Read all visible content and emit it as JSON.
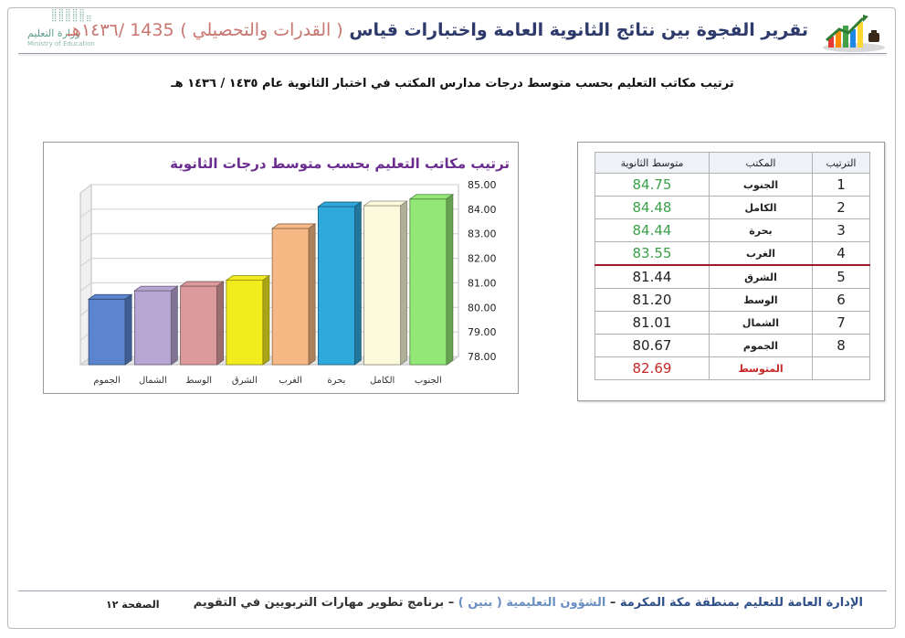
{
  "header": {
    "title_main": "تقرير الفجوة بين نتائج الثانوية العامة واختبارات قياس",
    "title_bracket": "( القدرات والتحصيلي )",
    "title_year": "1435 /١٤٣٦هـ",
    "ministry_ar": "وزارة التعليم",
    "ministry_en": "Ministry of Education"
  },
  "subtitle": "ترتيب مكاتب التعليم بحسب متوسط درجات مدارس المكتب في اختبار الثانوية عام ١٤٣٥ / ١٤٣٦ هـ",
  "chart_data": {
    "type": "bar",
    "title": "ترتيب مكاتب التعليم بحسب متوسط درجات الثانوية",
    "categories": [
      "الجموم",
      "الشمال",
      "الوسط",
      "الشرق",
      "الغرب",
      "بحرة",
      "الكامل",
      "الجنوب"
    ],
    "values": [
      80.67,
      81.01,
      81.2,
      81.44,
      83.55,
      84.44,
      84.48,
      84.75
    ],
    "colors": [
      "#5b86cf",
      "#b7a5d3",
      "#dc9a9c",
      "#f2ec1f",
      "#f6b985",
      "#2fa8dc",
      "#fcfadc",
      "#92e776"
    ],
    "ylim": [
      78.0,
      85.0
    ],
    "yticks": [
      "78.00",
      "79.00",
      "80.00",
      "81.00",
      "82.00",
      "83.00",
      "84.00",
      "85.00"
    ],
    "grid": true,
    "xlabel": "",
    "ylabel": ""
  },
  "table": {
    "headers": {
      "rank": "الترتيب",
      "office": "المكتب",
      "score": "متوسط الثانوية"
    },
    "rows": [
      {
        "rank": "1",
        "office": "الجنوب",
        "score": "84.75"
      },
      {
        "rank": "2",
        "office": "الكامل",
        "score": "84.48"
      },
      {
        "rank": "3",
        "office": "بحرة",
        "score": "84.44"
      },
      {
        "rank": "4",
        "office": "الغرب",
        "score": "83.55"
      },
      {
        "rank": "5",
        "office": "الشرق",
        "score": "81.44"
      },
      {
        "rank": "6",
        "office": "الوسط",
        "score": "81.20"
      },
      {
        "rank": "7",
        "office": "الشمال",
        "score": "81.01"
      },
      {
        "rank": "8",
        "office": "الجموم",
        "score": "80.67"
      }
    ],
    "average_label": "المتوسط",
    "average_value": "82.69"
  },
  "footer": {
    "part1": "الإدارة العامة للتعليم بمنطقة مكة المكرمة",
    "sep1": "–",
    "part2": "الشؤون التعليمية ( بنين )",
    "sep2": "–",
    "part3": "برنامج تطوير مهارات التربويين في التقويم",
    "page_label": "الصفحة ١٢"
  },
  "colors": {
    "title_navy": "#2e3a6b",
    "title_accent": "#c8766f",
    "chart_title": "#6b2d8f",
    "score_good": "#3aa04a",
    "average_red": "#c62828",
    "divider": "#9b1c24"
  }
}
